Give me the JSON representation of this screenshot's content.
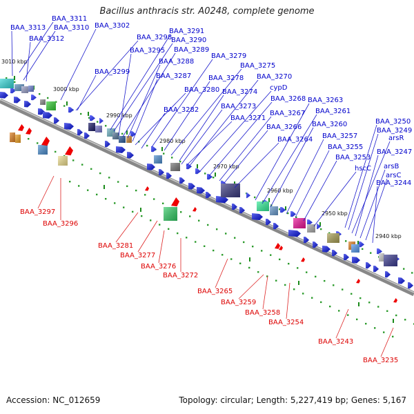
{
  "title": "Bacillus anthracis str. A0248, complete genome",
  "footer": {
    "accession": "Accession: NC_012659",
    "summary": "Topology: circular; Length: 5,227,419 bp; Genes: 5,167"
  },
  "colors": {
    "upper_label": "#0000cc",
    "lower_label": "#dd0000",
    "backbone": "#888888"
  },
  "ticks": [
    "3010 kbp",
    "3000 kbp",
    "2990 kbp",
    "2980 kbp",
    "2970 kbp",
    "2960 kbp",
    "2950 kbp",
    "2940 kbp"
  ],
  "upper_labels": [
    "BAA_3311",
    "BAA_3313",
    "BAA_3310",
    "BAA_3312",
    "BAA_3302",
    "BAA_3298",
    "BAA_3291",
    "BAA_3290",
    "BAA_3295",
    "BAA_3289",
    "BAA_3288",
    "BAA_3299",
    "BAA_3287",
    "BAA_3279",
    "BAA_3275",
    "BAA_3278",
    "BAA_3270",
    "BAA_3280",
    "BAA_3274",
    "cypD",
    "BAA_3268",
    "BAA_3263",
    "BAA_3273",
    "BAA_3282",
    "BAA_3267",
    "BAA_3261",
    "BAA_3271",
    "BAA_3266",
    "BAA_3260",
    "BAA_3250",
    "BAA_3249",
    "BAA_3264",
    "BAA_3257",
    "arsR",
    "BAA_3255",
    "BAA_3247",
    "BAA_3253",
    "hscC",
    "arsB",
    "arsC",
    "BAA_3244"
  ],
  "lower_labels": [
    "BAA_3297",
    "BAA_3296",
    "BAA_3281",
    "BAA_3277",
    "BAA_3276",
    "BAA_3272",
    "BAA_3265",
    "BAA_3259",
    "BAA_3258",
    "BAA_3254",
    "BAA_3243",
    "BAA_3235"
  ]
}
